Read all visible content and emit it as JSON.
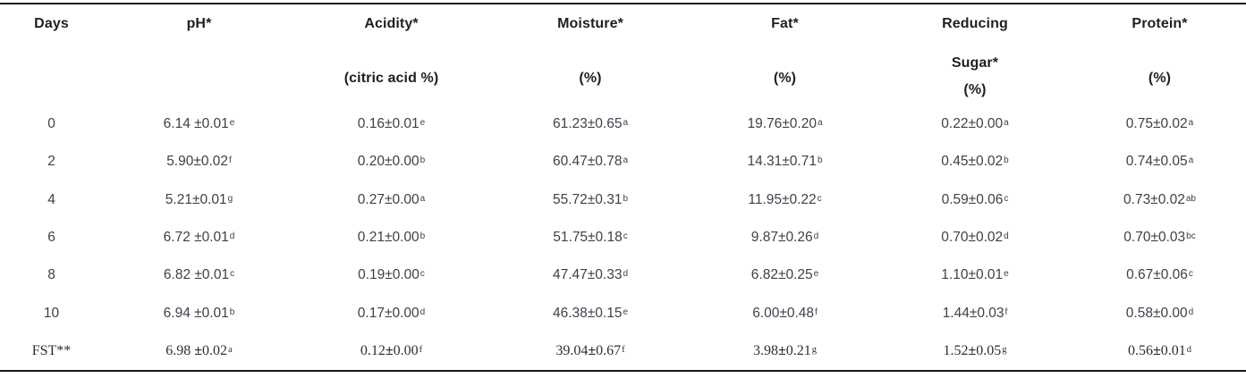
{
  "table": {
    "header": {
      "days": {
        "title": "Days"
      },
      "ph": {
        "title": "pH*"
      },
      "acidity": {
        "title": "Acidity*",
        "sub": "(citric acid %)"
      },
      "moisture": {
        "title": "Moisture*",
        "sub": "(%)"
      },
      "fat": {
        "title": "Fat*",
        "sub": "(%)"
      },
      "reducing_sugar": {
        "title": "Reducing",
        "mid": "Sugar*",
        "sub": "(%)"
      },
      "protein": {
        "title": "Protein*",
        "sub": "(%)"
      }
    },
    "rows": [
      {
        "day": "0",
        "serif": false,
        "ph": {
          "v": "6.14 ±0.01",
          "sup": "e"
        },
        "acidity": {
          "v": "0.16±0.01",
          "sup": "e"
        },
        "moisture": {
          "v": "61.23±0.65",
          "sup": "a"
        },
        "fat": {
          "v": "19.76±0.20",
          "sup": "a"
        },
        "reducing_sugar": {
          "v": "0.22±0.00",
          "sup": "a"
        },
        "protein": {
          "v": "0.75±0.02",
          "sup": "a"
        }
      },
      {
        "day": "2",
        "serif": false,
        "ph": {
          "v": "5.90±0.02",
          "sup": "f"
        },
        "acidity": {
          "v": "0.20±0.00",
          "sup": "b"
        },
        "moisture": {
          "v": "60.47±0.78",
          "sup": "a"
        },
        "fat": {
          "v": "14.31±0.71",
          "sup": "b"
        },
        "reducing_sugar": {
          "v": "0.45±0.02",
          "sup": "b"
        },
        "protein": {
          "v": "0.74±0.05",
          "sup": "a"
        }
      },
      {
        "day": "4",
        "serif": false,
        "ph": {
          "v": "5.21±0.01",
          "sup": "g"
        },
        "acidity": {
          "v": "0.27±0.00",
          "sup": "a"
        },
        "moisture": {
          "v": "55.72±0.31",
          "sup": "b"
        },
        "fat": {
          "v": "11.95±0.22",
          "sup": "c"
        },
        "reducing_sugar": {
          "v": "0.59±0.06",
          "sup": "c"
        },
        "protein": {
          "v": "0.73±0.02",
          "sup": "ab"
        }
      },
      {
        "day": "6",
        "serif": false,
        "ph": {
          "v": "6.72 ±0.01",
          "sup": "d"
        },
        "acidity": {
          "v": "0.21±0.00",
          "sup": "b"
        },
        "moisture": {
          "v": "51.75±0.18",
          "sup": "c"
        },
        "fat": {
          "v": "9.87±0.26",
          "sup": "d"
        },
        "reducing_sugar": {
          "v": "0.70±0.02",
          "sup": "d"
        },
        "protein": {
          "v": "0.70±0.03",
          "sup": "bc"
        }
      },
      {
        "day": "8",
        "serif": false,
        "ph": {
          "v": "6.82 ±0.01",
          "sup": "c"
        },
        "acidity": {
          "v": "0.19±0.00",
          "sup": "c"
        },
        "moisture": {
          "v": "47.47±0.33",
          "sup": "d"
        },
        "fat": {
          "v": "6.82±0.25",
          "sup": "e"
        },
        "reducing_sugar": {
          "v": "1.10±0.01",
          "sup": "e"
        },
        "protein": {
          "v": "0.67±0.06",
          "sup": "c"
        }
      },
      {
        "day": "10",
        "serif": false,
        "ph": {
          "v": "6.94 ±0.01",
          "sup": "b"
        },
        "acidity": {
          "v": "0.17±0.00",
          "sup": "d"
        },
        "moisture": {
          "v": "46.38±0.15",
          "sup": "e"
        },
        "fat": {
          "v": "6.00±0.48",
          "sup": "f"
        },
        "reducing_sugar": {
          "v": "1.44±0.03",
          "sup": "f"
        },
        "protein": {
          "v": "0.58±0.00",
          "sup": "d"
        }
      },
      {
        "day": "FST**",
        "serif": true,
        "ph": {
          "v": "6.98 ±0.02",
          "sup": "a"
        },
        "acidity": {
          "v": "0.12±0.00",
          "sup": "f"
        },
        "moisture": {
          "v": "39.04±0.67",
          "sup": "f"
        },
        "fat": {
          "v": "3.98±0.21",
          "sup": "g"
        },
        "reducing_sugar": {
          "v": "1.52±0.05",
          "sup": "g"
        },
        "protein": {
          "v": "0.56±0.01",
          "sup": "d"
        }
      }
    ]
  },
  "colors": {
    "border": "#17181c",
    "header_text": "#1e2025",
    "body_text": "#3c414a"
  }
}
